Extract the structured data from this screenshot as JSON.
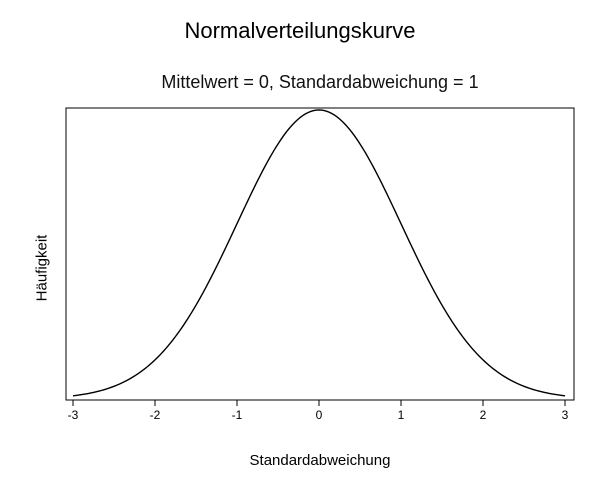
{
  "chart_data": {
    "type": "line",
    "title": "Normalverteilungskurve",
    "subtitle": "Mittelwert = 0, Standardabweichung = 1",
    "xlabel": "Standardabweichung",
    "ylabel": "Häufigkeit",
    "xlim": [
      -3,
      3
    ],
    "x_ticks": [
      -3,
      -2,
      -1,
      0,
      1,
      2,
      3
    ],
    "x_tick_labels": [
      "-3",
      "-2",
      "-1",
      "0",
      "1",
      "2",
      "3"
    ],
    "y_ticks_shown": false,
    "grid": false,
    "mean": 0,
    "std": 1,
    "series": [
      {
        "x": [
          -3,
          -2.5,
          -2,
          -1.5,
          -1,
          -0.5,
          0,
          0.5,
          1,
          1.5,
          2,
          2.5,
          3
        ],
        "y": [
          0.0044,
          0.0175,
          0.054,
          0.1295,
          0.242,
          0.3521,
          0.3989,
          0.3521,
          0.242,
          0.1295,
          0.054,
          0.0175,
          0.0044
        ],
        "color": "#000000"
      }
    ]
  }
}
